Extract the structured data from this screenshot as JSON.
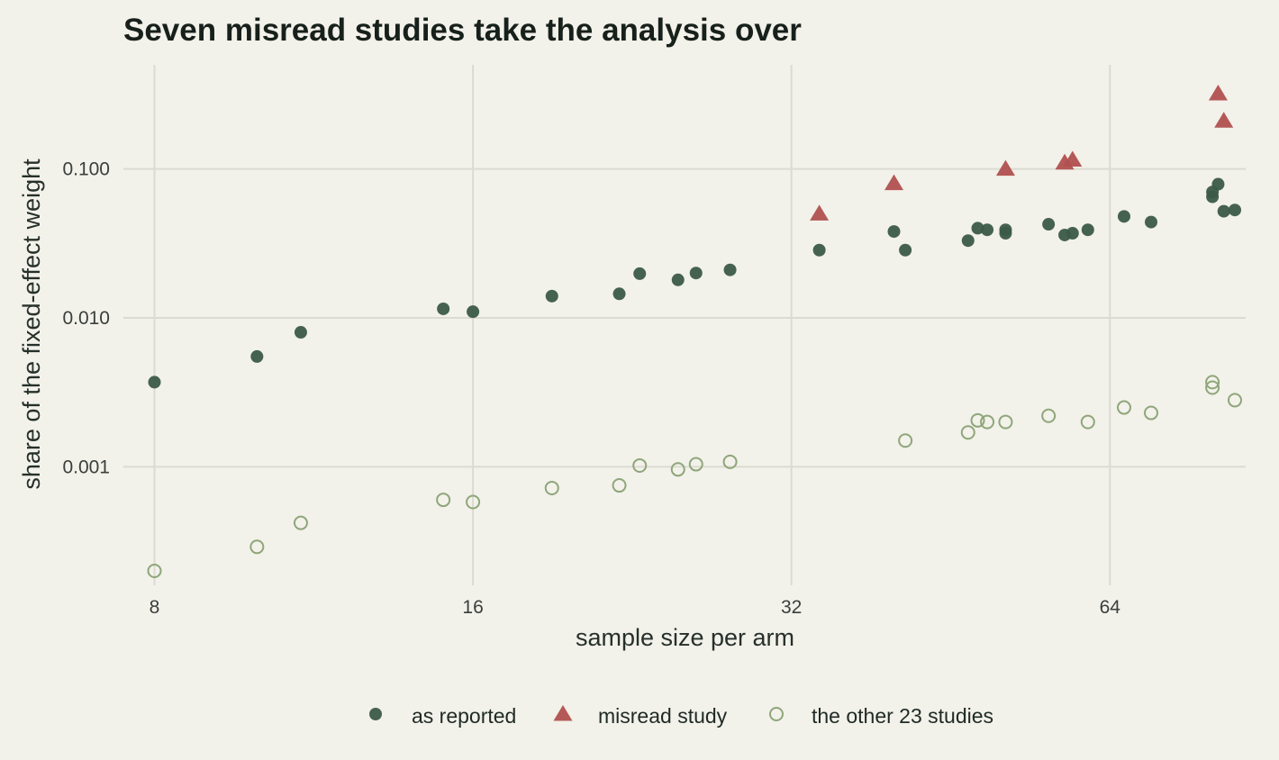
{
  "chart_data": {
    "type": "scatter",
    "title": "Seven misread studies take the analysis over",
    "xlabel": "sample size per arm",
    "ylabel": "share of the fixed-effect weight",
    "x_scale": "log2",
    "y_scale": "log10",
    "xlim": [
      7.7,
      86
    ],
    "ylim": [
      0.00016,
      0.5
    ],
    "x_ticks": [
      8,
      16,
      32,
      64
    ],
    "x_tick_labels": [
      "8",
      "16",
      "32",
      "64"
    ],
    "y_ticks": [
      0.001,
      0.01,
      0.1
    ],
    "y_tick_labels": [
      "0.001",
      "0.010",
      "0.100"
    ],
    "grid": true,
    "legend_position": "bottom",
    "colors": {
      "as_reported": "#3b5a48",
      "misread": "#b0504f",
      "other": "#8fa67a",
      "grid": "#dcdbd2",
      "background": "#f2f1ea"
    },
    "series": [
      {
        "name": "as reported",
        "marker": "filled-circle",
        "points": [
          [
            8,
            0.0037
          ],
          [
            10,
            0.0055
          ],
          [
            11,
            0.008
          ],
          [
            15,
            0.0115
          ],
          [
            16,
            0.011
          ],
          [
            19,
            0.014
          ],
          [
            22,
            0.0145
          ],
          [
            23,
            0.0198
          ],
          [
            25,
            0.018
          ],
          [
            26,
            0.02
          ],
          [
            28,
            0.021
          ],
          [
            34,
            0.0285
          ],
          [
            40,
            0.038
          ],
          [
            41,
            0.0285
          ],
          [
            47,
            0.033
          ],
          [
            48,
            0.04
          ],
          [
            49,
            0.039
          ],
          [
            51,
            0.039
          ],
          [
            51,
            0.037
          ],
          [
            56,
            0.0425
          ],
          [
            58,
            0.036
          ],
          [
            59,
            0.037
          ],
          [
            61,
            0.039
          ],
          [
            66,
            0.048
          ],
          [
            70,
            0.044
          ],
          [
            80,
            0.065
          ],
          [
            80,
            0.07
          ],
          [
            81,
            0.079
          ],
          [
            82,
            0.052
          ],
          [
            84,
            0.053
          ]
        ]
      },
      {
        "name": "misread study",
        "marker": "triangle",
        "points": [
          [
            34,
            0.05
          ],
          [
            40,
            0.08
          ],
          [
            51,
            0.1
          ],
          [
            58,
            0.11
          ],
          [
            59,
            0.115
          ],
          [
            81,
            0.32
          ],
          [
            82,
            0.21
          ]
        ]
      },
      {
        "name": "the other 23 studies",
        "marker": "open-circle",
        "points": [
          [
            8,
            0.0002
          ],
          [
            10,
            0.00029
          ],
          [
            11,
            0.00042
          ],
          [
            15,
            0.0006
          ],
          [
            16,
            0.00058
          ],
          [
            19,
            0.00072
          ],
          [
            22,
            0.00075
          ],
          [
            23,
            0.00102
          ],
          [
            25,
            0.00096
          ],
          [
            26,
            0.00104
          ],
          [
            28,
            0.00108
          ],
          [
            41,
            0.0015
          ],
          [
            47,
            0.0017
          ],
          [
            48,
            0.00205
          ],
          [
            49,
            0.002
          ],
          [
            51,
            0.002
          ],
          [
            56,
            0.0022
          ],
          [
            61,
            0.002
          ],
          [
            66,
            0.0025
          ],
          [
            70,
            0.0023
          ],
          [
            80,
            0.0037
          ],
          [
            80,
            0.0034
          ],
          [
            84,
            0.0028
          ]
        ]
      }
    ]
  }
}
